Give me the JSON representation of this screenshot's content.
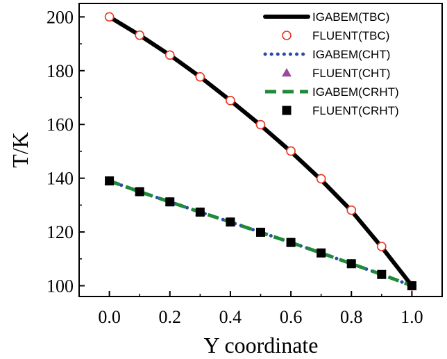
{
  "chart_data": {
    "type": "line",
    "xlabel": "Y coordinate",
    "ylabel": "T/K",
    "xlim": [
      -0.1,
      1.1
    ],
    "ylim": [
      96,
      205
    ],
    "xticks": [
      0.0,
      0.2,
      0.4,
      0.6,
      0.8,
      1.0
    ],
    "xtick_labels": [
      "0.0",
      "0.2",
      "0.4",
      "0.6",
      "0.8",
      "1.0"
    ],
    "yticks": [
      100,
      120,
      140,
      160,
      180,
      200
    ],
    "ytick_labels": [
      "100",
      "120",
      "140",
      "160",
      "180",
      "200"
    ],
    "grid": false,
    "legend_position": "top-right",
    "series": [
      {
        "name": "IGABEM(TBC)",
        "style": "solid-line",
        "color": "#000000",
        "x": [
          0.0,
          0.1,
          0.2,
          0.3,
          0.4,
          0.5,
          0.6,
          0.7,
          0.8,
          0.9,
          1.0
        ],
        "y": [
          200.0,
          193.2,
          185.8,
          177.7,
          168.9,
          159.7,
          149.9,
          139.4,
          127.9,
          114.4,
          100.0
        ]
      },
      {
        "name": "FLUENT(TBC)",
        "style": "open-circle",
        "color": "#e8321e",
        "x": [
          0.0,
          0.1,
          0.2,
          0.3,
          0.4,
          0.5,
          0.6,
          0.7,
          0.8,
          0.9,
          1.0
        ],
        "y": [
          200.0,
          193.2,
          185.8,
          177.7,
          168.9,
          159.9,
          150.1,
          139.8,
          128.1,
          114.6,
          100.0
        ]
      },
      {
        "name": "IGABEM(CHT)",
        "style": "dotted-line",
        "color": "#2b4ba8",
        "x": [
          0.0,
          0.1,
          0.2,
          0.3,
          0.4,
          0.5,
          0.6,
          0.7,
          0.8,
          0.9,
          1.0
        ],
        "y": [
          139.0,
          135.0,
          131.2,
          127.4,
          123.7,
          119.9,
          116.1,
          112.2,
          108.2,
          104.2,
          100.0
        ]
      },
      {
        "name": "FLUENT(CHT)",
        "style": "filled-triangle",
        "color": "#9b4a9c",
        "x": [
          0.0,
          0.1,
          0.2,
          0.3,
          0.4,
          0.5,
          0.6,
          0.7,
          0.8,
          0.9,
          1.0
        ],
        "y": [
          139.0,
          135.0,
          131.2,
          127.4,
          123.7,
          119.9,
          116.1,
          112.2,
          108.2,
          104.2,
          100.0
        ]
      },
      {
        "name": "IGABEM(CRHT)",
        "style": "dashed-line",
        "color": "#1f8a3a",
        "x": [
          0.0,
          0.1,
          0.2,
          0.3,
          0.4,
          0.5,
          0.6,
          0.7,
          0.8,
          0.9,
          1.0
        ],
        "y": [
          139.0,
          135.0,
          131.2,
          127.4,
          123.7,
          119.9,
          116.1,
          112.2,
          108.2,
          104.2,
          100.0
        ]
      },
      {
        "name": "FLUENT(CRHT)",
        "style": "filled-square",
        "color": "#000000",
        "x": [
          0.0,
          0.1,
          0.2,
          0.3,
          0.4,
          0.5,
          0.6,
          0.7,
          0.8,
          0.9,
          1.0
        ],
        "y": [
          139.0,
          135.0,
          131.2,
          127.4,
          123.7,
          119.9,
          116.1,
          112.2,
          108.2,
          104.2,
          100.0
        ]
      }
    ]
  }
}
